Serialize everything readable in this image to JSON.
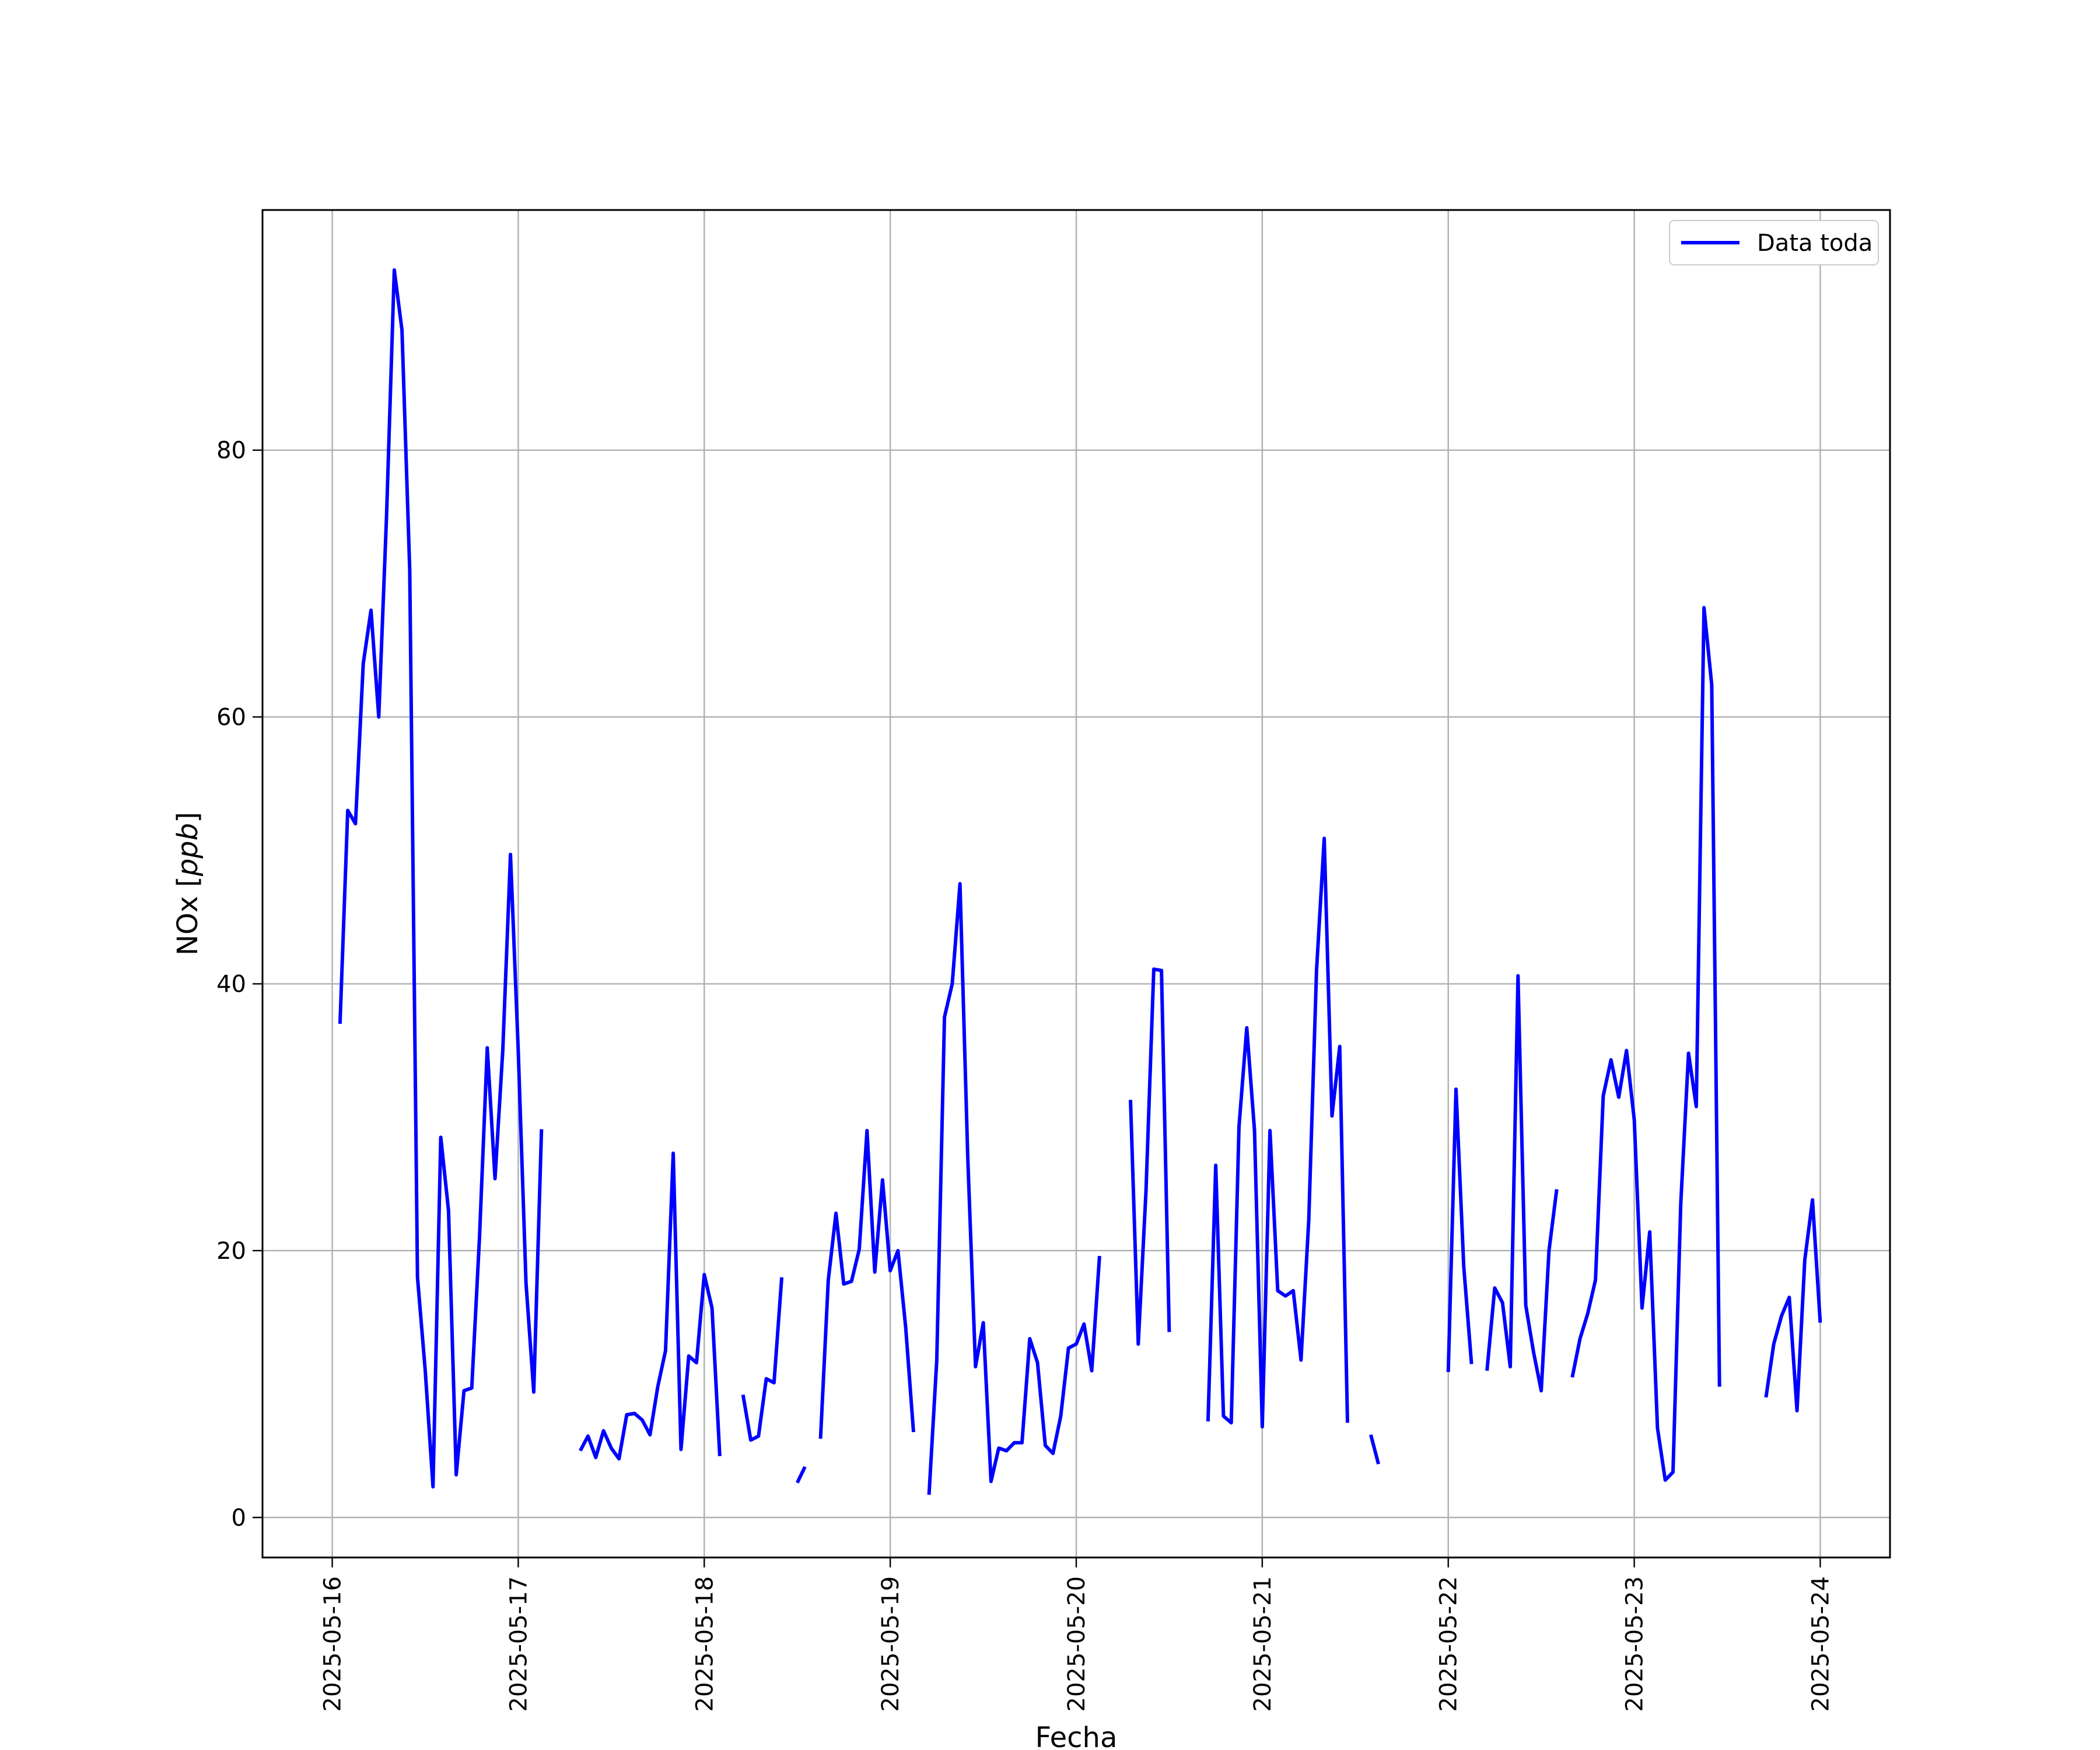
{
  "chart_data": {
    "type": "line",
    "title": "",
    "xlabel": "Fecha",
    "ylabel": "NOx [ppb]",
    "ylabel_plain": "NOx [",
    "ylabel_italic": "ppb",
    "ylabel_close": "]",
    "xlim": [
      "2025-05-15 15:00",
      "2025-05-24 09:00"
    ],
    "ylim": [
      -3,
      98
    ],
    "x_ticks": [
      "2025-05-16",
      "2025-05-17",
      "2025-05-18",
      "2025-05-19",
      "2025-05-20",
      "2025-05-21",
      "2025-05-22",
      "2025-05-23",
      "2025-05-24"
    ],
    "y_ticks": [
      0,
      20,
      40,
      60,
      80
    ],
    "y_tick_labels": [
      "0",
      "20",
      "40",
      "60",
      "80"
    ],
    "grid": true,
    "legend_position": "top-right",
    "series": [
      {
        "name": "Data toda",
        "color": "#0000ff",
        "segments": [
          [
            [
              "2025-05-16 01:00",
              37
            ],
            [
              "2025-05-16 02:00",
              53
            ],
            [
              "2025-05-16 03:00",
              52
            ],
            [
              "2025-05-16 04:00",
              64
            ],
            [
              "2025-05-16 05:00",
              68
            ],
            [
              "2025-05-16 06:00",
              60
            ],
            [
              "2025-05-16 07:00",
              75
            ],
            [
              "2025-05-16 08:00",
              93.5
            ],
            [
              "2025-05-16 09:00",
              89
            ],
            [
              "2025-05-16 10:00",
              71
            ],
            [
              "2025-05-16 11:00",
              18
            ],
            [
              "2025-05-16 12:00",
              11
            ],
            [
              "2025-05-16 13:00",
              2.3
            ],
            [
              "2025-05-16 14:00",
              28.5
            ],
            [
              "2025-05-16 15:00",
              23
            ],
            [
              "2025-05-16 16:00",
              3.2
            ],
            [
              "2025-05-16 17:00",
              9.5
            ],
            [
              "2025-05-16 18:00",
              9.7
            ],
            [
              "2025-05-16 19:00",
              21
            ],
            [
              "2025-05-16 20:00",
              35.2
            ],
            [
              "2025-05-16 21:00",
              25.4
            ],
            [
              "2025-05-16 22:00",
              35
            ],
            [
              "2025-05-16 23:00",
              49.7
            ],
            [
              "2025-05-17 00:00",
              35
            ],
            [
              "2025-05-17 01:00",
              17.6
            ],
            [
              "2025-05-17 02:00",
              9.4
            ],
            [
              "2025-05-17 03:00",
              29.1
            ]
          ],
          [
            [
              "2025-05-17 08:00",
              5
            ],
            [
              "2025-05-17 09:00",
              6.1
            ],
            [
              "2025-05-17 10:00",
              4.5
            ],
            [
              "2025-05-17 11:00",
              6.5
            ],
            [
              "2025-05-17 12:00",
              5.2
            ],
            [
              "2025-05-17 13:00",
              4.4
            ],
            [
              "2025-05-17 14:00",
              7.7
            ],
            [
              "2025-05-17 15:00",
              7.8
            ],
            [
              "2025-05-17 16:00",
              7.3
            ],
            [
              "2025-05-17 17:00",
              6.2
            ],
            [
              "2025-05-17 18:00",
              9.8
            ],
            [
              "2025-05-17 19:00",
              12.5
            ],
            [
              "2025-05-17 20:00",
              27.3
            ],
            [
              "2025-05-17 21:00",
              5.1
            ],
            [
              "2025-05-17 22:00",
              12.1
            ],
            [
              "2025-05-17 23:00",
              11.6
            ],
            [
              "2025-05-18 00:00",
              18.2
            ],
            [
              "2025-05-18 01:00",
              15.7
            ],
            [
              "2025-05-18 02:00",
              4.6
            ]
          ],
          [
            [
              "2025-05-18 05:00",
              9.2
            ],
            [
              "2025-05-18 06:00",
              5.8
            ],
            [
              "2025-05-18 07:00",
              6.1
            ],
            [
              "2025-05-18 08:00",
              10.4
            ],
            [
              "2025-05-18 09:00",
              10.1
            ],
            [
              "2025-05-18 10:00",
              18
            ]
          ],
          [
            [
              "2025-05-18 12:00",
              2.6
            ],
            [
              "2025-05-18 13:00",
              3.8
            ]
          ],
          [
            [
              "2025-05-18 15:00",
              5.9
            ],
            [
              "2025-05-18 16:00",
              17.8
            ],
            [
              "2025-05-18 17:00",
              22.8
            ],
            [
              "2025-05-18 18:00",
              17.5
            ],
            [
              "2025-05-18 19:00",
              17.7
            ],
            [
              "2025-05-18 20:00",
              20.1
            ],
            [
              "2025-05-18 21:00",
              29
            ],
            [
              "2025-05-18 22:00",
              18.4
            ],
            [
              "2025-05-18 23:00",
              25.3
            ],
            [
              "2025-05-19 00:00",
              18.5
            ],
            [
              "2025-05-19 01:00",
              20
            ],
            [
              "2025-05-19 02:00",
              14.2
            ],
            [
              "2025-05-19 03:00",
              6.4
            ]
          ],
          [
            [
              "2025-05-19 05:00",
              1.7
            ],
            [
              "2025-05-19 06:00",
              11.8
            ],
            [
              "2025-05-19 07:00",
              37.5
            ],
            [
              "2025-05-19 08:00",
              40
            ],
            [
              "2025-05-19 09:00",
              47.5
            ],
            [
              "2025-05-19 10:00",
              27
            ],
            [
              "2025-05-19 11:00",
              11.3
            ],
            [
              "2025-05-19 12:00",
              14.6
            ],
            [
              "2025-05-19 13:00",
              2.7
            ],
            [
              "2025-05-19 14:00",
              5.2
            ],
            [
              "2025-05-19 15:00",
              5
            ],
            [
              "2025-05-19 16:00",
              5.6
            ],
            [
              "2025-05-19 17:00",
              5.6
            ],
            [
              "2025-05-19 18:00",
              13.4
            ],
            [
              "2025-05-19 19:00",
              11.6
            ],
            [
              "2025-05-19 20:00",
              5.4
            ],
            [
              "2025-05-19 21:00",
              4.8
            ],
            [
              "2025-05-19 22:00",
              7.6
            ],
            [
              "2025-05-19 23:00",
              12.7
            ],
            [
              "2025-05-20 00:00",
              13
            ],
            [
              "2025-05-20 01:00",
              14.5
            ],
            [
              "2025-05-20 02:00",
              11
            ],
            [
              "2025-05-20 03:00",
              19.6
            ]
          ],
          [
            [
              "2025-05-20 07:00",
              31.3
            ],
            [
              "2025-05-20 08:00",
              13
            ],
            [
              "2025-05-20 09:00",
              24.5
            ],
            [
              "2025-05-20 10:00",
              41.1
            ],
            [
              "2025-05-20 11:00",
              41
            ],
            [
              "2025-05-20 12:00",
              13.9
            ]
          ],
          [
            [
              "2025-05-20 17:00",
              7.2
            ],
            [
              "2025-05-20 18:00",
              26.4
            ],
            [
              "2025-05-20 19:00",
              7.6
            ],
            [
              "2025-05-20 20:00",
              7.1
            ],
            [
              "2025-05-20 21:00",
              29.3
            ],
            [
              "2025-05-20 22:00",
              36.7
            ],
            [
              "2025-05-20 23:00",
              29
            ],
            [
              "2025-05-21 00:00",
              6.8
            ],
            [
              "2025-05-21 01:00",
              29
            ],
            [
              "2025-05-21 02:00",
              17
            ],
            [
              "2025-05-21 03:00",
              16.6
            ],
            [
              "2025-05-21 04:00",
              17
            ],
            [
              "2025-05-21 05:00",
              11.8
            ],
            [
              "2025-05-21 06:00",
              22.3
            ],
            [
              "2025-05-21 07:00",
              41
            ],
            [
              "2025-05-21 08:00",
              50.9
            ],
            [
              "2025-05-21 09:00",
              30.1
            ],
            [
              "2025-05-21 10:00",
              35.3
            ],
            [
              "2025-05-21 11:00",
              7.1
            ]
          ],
          [
            [
              "2025-05-21 14:00",
              6.2
            ],
            [
              "2025-05-21 15:00",
              4
            ]
          ],
          [
            [
              "2025-05-22 00:00",
              10.9
            ],
            [
              "2025-05-22 01:00",
              32.1
            ],
            [
              "2025-05-22 02:00",
              18.8
            ],
            [
              "2025-05-22 03:00",
              11.5
            ]
          ],
          [
            [
              "2025-05-22 05:00",
              11
            ],
            [
              "2025-05-22 06:00",
              17.2
            ],
            [
              "2025-05-22 07:00",
              16.1
            ],
            [
              "2025-05-22 08:00",
              11.3
            ],
            [
              "2025-05-22 09:00",
              40.6
            ],
            [
              "2025-05-22 10:00",
              15.9
            ],
            [
              "2025-05-22 11:00",
              12.4
            ],
            [
              "2025-05-22 12:00",
              9.5
            ],
            [
              "2025-05-22 13:00",
              20
            ],
            [
              "2025-05-22 14:00",
              24.6
            ]
          ],
          [
            [
              "2025-05-22 16:00",
              10.5
            ],
            [
              "2025-05-22 17:00",
              13.4
            ],
            [
              "2025-05-22 18:00",
              15.3
            ],
            [
              "2025-05-22 19:00",
              17.8
            ],
            [
              "2025-05-22 20:00",
              31.6
            ],
            [
              "2025-05-22 21:00",
              34.3
            ],
            [
              "2025-05-22 22:00",
              31.5
            ],
            [
              "2025-05-22 23:00",
              35
            ],
            [
              "2025-05-23 00:00",
              29.8
            ],
            [
              "2025-05-23 01:00",
              15.7
            ],
            [
              "2025-05-23 02:00",
              21.4
            ],
            [
              "2025-05-23 03:00",
              6.7
            ],
            [
              "2025-05-23 04:00",
              2.8
            ],
            [
              "2025-05-23 05:00",
              3.4
            ],
            [
              "2025-05-23 06:00",
              23.5
            ],
            [
              "2025-05-23 07:00",
              34.8
            ],
            [
              "2025-05-23 08:00",
              30.8
            ],
            [
              "2025-05-23 09:00",
              68.2
            ],
            [
              "2025-05-23 10:00",
              62.4
            ],
            [
              "2025-05-23 11:00",
              9.8
            ]
          ],
          [
            [
              "2025-05-23 17:00",
              9
            ],
            [
              "2025-05-23 18:00",
              13
            ],
            [
              "2025-05-23 19:00",
              15.1
            ],
            [
              "2025-05-23 20:00",
              16.5
            ],
            [
              "2025-05-23 21:00",
              8
            ],
            [
              "2025-05-23 22:00",
              19.3
            ],
            [
              "2025-05-23 23:00",
              23.8
            ],
            [
              "2025-05-24 00:00",
              14.6
            ]
          ]
        ]
      }
    ]
  }
}
